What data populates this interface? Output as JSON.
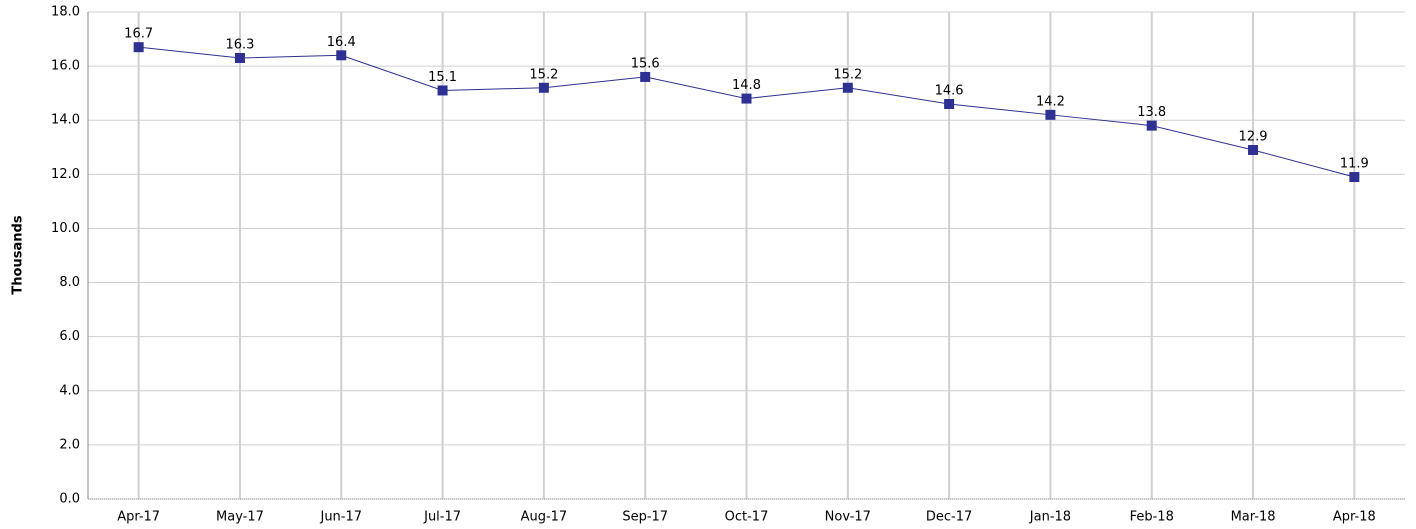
{
  "chart_data": {
    "type": "line",
    "y_label": "Thousands",
    "categories": [
      "Apr-17",
      "May-17",
      "Jun-17",
      "Jul-17",
      "Aug-17",
      "Sep-17",
      "Oct-17",
      "Nov-17",
      "Dec-17",
      "Jan-18",
      "Feb-18",
      "Mar-18",
      "Apr-18"
    ],
    "series": [
      {
        "color": "#2e3192",
        "values": [
          16.7,
          16.3,
          16.4,
          15.1,
          15.2,
          15.6,
          14.8,
          15.2,
          14.6,
          14.2,
          13.8,
          12.9,
          11.9
        ]
      }
    ],
    "ylim": [
      0,
      18
    ],
    "yticks": [
      {
        "value": 0,
        "label": "0.0"
      },
      {
        "value": 2,
        "label": "2.0"
      },
      {
        "value": 4,
        "label": "4.0"
      },
      {
        "value": 6,
        "label": "6.0"
      },
      {
        "value": 8,
        "label": "8.0"
      },
      {
        "value": 10,
        "label": "10.0"
      },
      {
        "value": 12,
        "label": "12.0"
      },
      {
        "value": 14,
        "label": "14.0"
      },
      {
        "value": 16,
        "label": "16.0"
      },
      {
        "value": 18,
        "label": "18.0"
      }
    ],
    "grid": true
  }
}
